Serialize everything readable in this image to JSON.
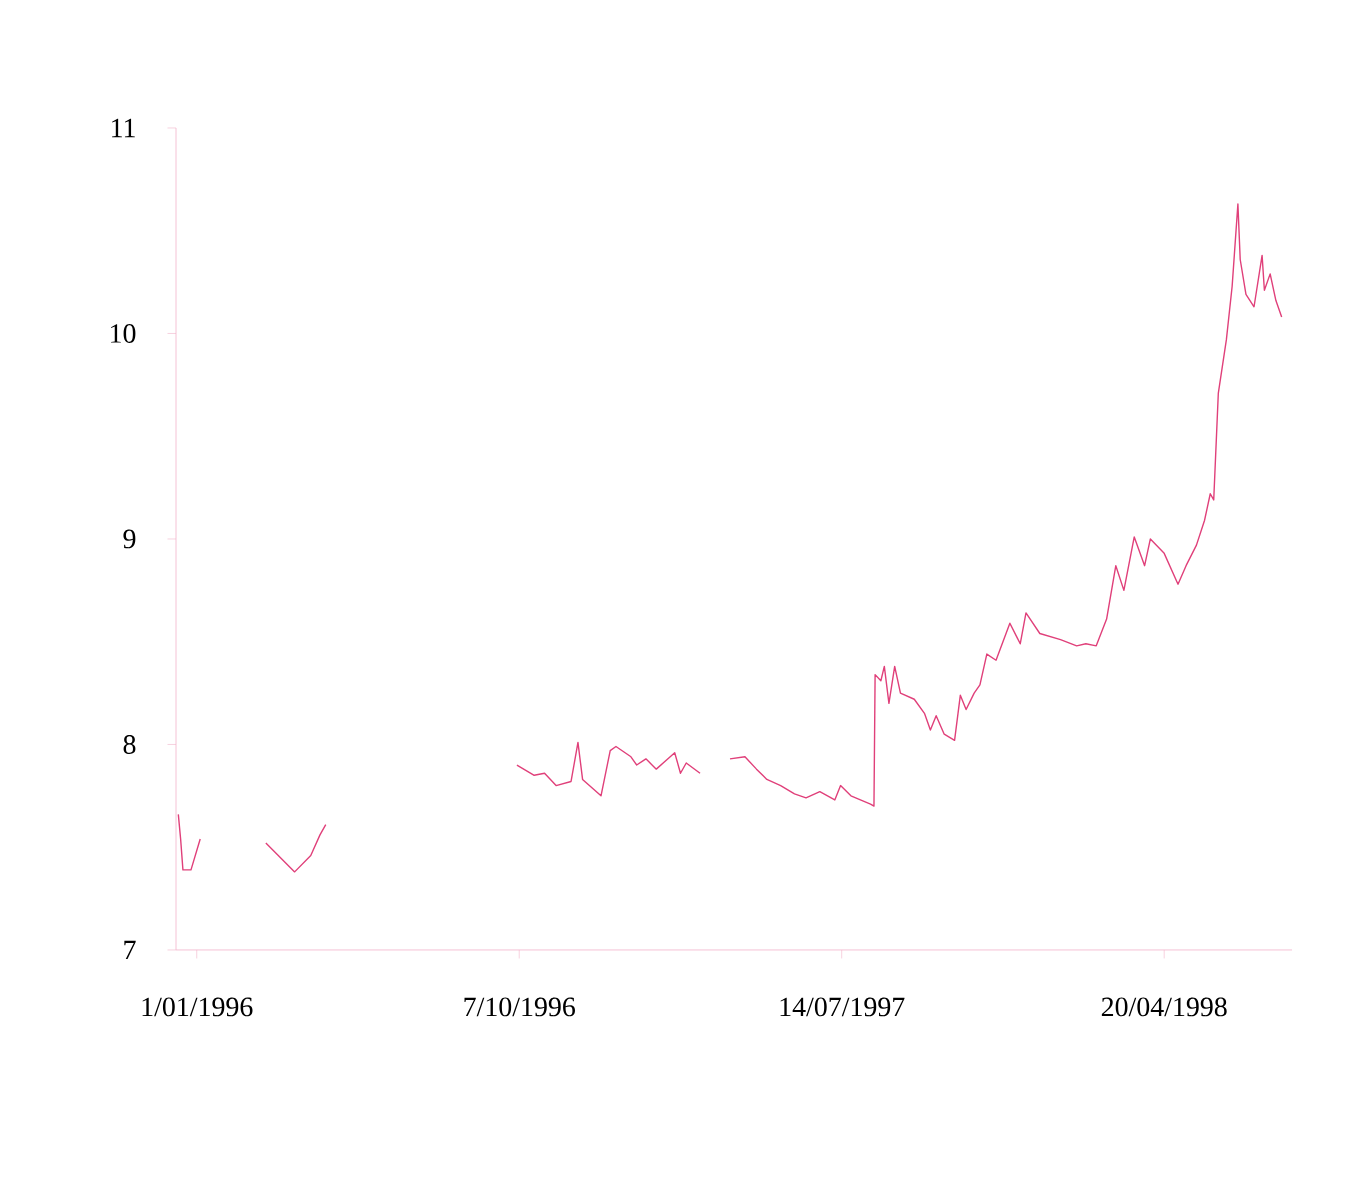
{
  "chart_data": {
    "type": "line",
    "x": [
      "1995-12-16",
      "1995-12-18",
      "1995-12-20",
      "1995-12-27",
      "1996-01-04",
      "1996-02-01",
      "1996-03-01",
      "1996-03-26",
      "1996-04-09",
      "1996-04-17",
      "1996-04-22",
      "1996-07-01",
      "1996-10-05",
      "1996-10-20",
      "1996-10-29",
      "1996-11-08",
      "1996-11-21",
      "1996-11-27",
      "1996-12-01",
      "1996-12-17",
      "1996-12-25",
      "1996-12-30",
      "1997-01-12",
      "1997-01-17",
      "1997-01-25",
      "1997-02-03",
      "1997-02-19",
      "1997-02-24",
      "1997-03-01",
      "1997-03-13",
      "1997-03-25",
      "1997-04-08",
      "1997-04-21",
      "1997-05-01",
      "1997-05-10",
      "1997-05-22",
      "1997-06-03",
      "1997-06-13",
      "1997-06-25",
      "1997-07-08",
      "1997-07-13",
      "1997-07-22",
      "1997-08-08",
      "1997-08-11",
      "1997-08-12",
      "1997-08-17",
      "1997-08-20",
      "1997-08-24",
      "1997-08-29",
      "1997-09-03",
      "1997-09-15",
      "1997-09-24",
      "1997-09-29",
      "1997-10-04",
      "1997-10-11",
      "1997-10-20",
      "1997-10-25",
      "1997-10-30",
      "1997-11-06",
      "1997-11-11",
      "1997-11-17",
      "1997-11-25",
      "1997-12-07",
      "1997-12-16",
      "1997-12-21",
      "1998-01-02",
      "1998-01-20",
      "1998-02-03",
      "1998-02-11",
      "1998-02-20",
      "1998-03-01",
      "1998-03-09",
      "1998-03-16",
      "1998-03-25",
      "1998-04-03",
      "1998-04-08",
      "1998-04-20",
      "1998-05-02",
      "1998-05-09",
      "1998-05-18",
      "1998-05-25",
      "1998-05-30",
      "1998-06-02",
      "1998-06-06",
      "1998-06-13",
      "1998-06-18",
      "1998-06-23",
      "1998-06-25",
      "1998-06-30",
      "1998-07-07",
      "1998-07-14",
      "1998-07-16",
      "1998-07-21",
      "1998-07-26",
      "1998-07-31"
    ],
    "values": [
      7.66,
      7.54,
      7.39,
      7.39,
      7.54,
      null,
      7.52,
      7.38,
      7.46,
      7.56,
      7.61,
      null,
      7.9,
      7.85,
      7.86,
      7.8,
      7.82,
      8.01,
      7.83,
      7.75,
      7.97,
      7.99,
      7.94,
      7.9,
      7.93,
      7.88,
      7.96,
      7.86,
      7.91,
      7.86,
      null,
      7.93,
      7.94,
      7.88,
      7.83,
      7.8,
      7.76,
      7.74,
      7.77,
      7.73,
      7.8,
      7.75,
      7.71,
      7.7,
      8.34,
      8.31,
      8.38,
      8.2,
      8.38,
      8.25,
      8.22,
      8.15,
      8.07,
      8.14,
      8.05,
      8.02,
      8.24,
      8.17,
      8.25,
      8.29,
      8.44,
      8.41,
      8.59,
      8.49,
      8.64,
      8.54,
      8.51,
      8.48,
      8.49,
      8.48,
      8.61,
      8.87,
      8.75,
      9.01,
      8.87,
      9.0,
      8.93,
      8.78,
      8.87,
      8.97,
      9.09,
      9.22,
      9.19,
      9.71,
      9.97,
      10.23,
      10.63,
      10.36,
      10.19,
      10.13,
      10.38,
      10.21,
      10.29,
      10.16,
      10.08
    ],
    "color": "#e0407a",
    "xlim": [
      "1995-12-14",
      "1998-08-09"
    ],
    "ylim": [
      7,
      11
    ],
    "xticks": [
      {
        "value": "1996-01-01",
        "label": "1/01/1996"
      },
      {
        "value": "1996-10-07",
        "label": "7/10/1996"
      },
      {
        "value": "1997-07-14",
        "label": "14/07/1997"
      },
      {
        "value": "1998-04-20",
        "label": "20/04/1998"
      }
    ],
    "yticks": [
      7,
      8,
      9,
      10,
      11
    ],
    "line_style": "solid"
  }
}
